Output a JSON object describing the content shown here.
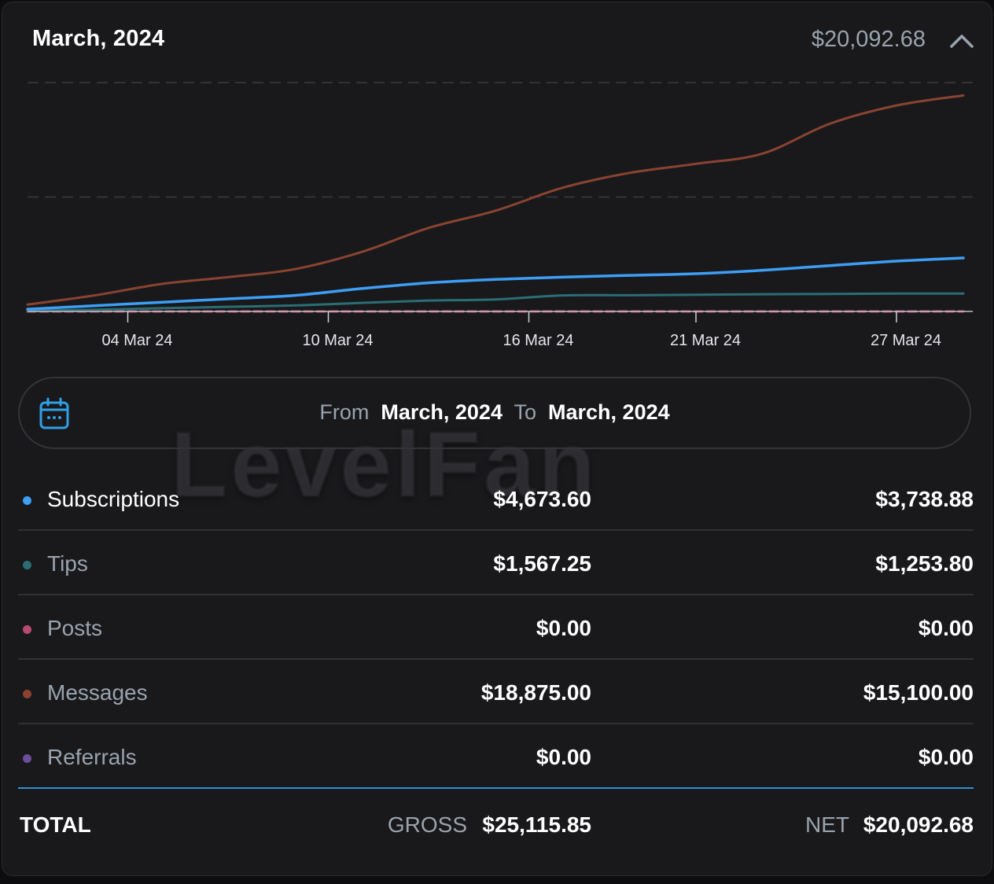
{
  "header": {
    "title": "March, 2024",
    "total": "$20,092.68"
  },
  "watermark": "LevelFan",
  "range": {
    "from_label": "From",
    "from_value": "March, 2024",
    "to_label": "To",
    "to_value": "March, 2024"
  },
  "rows": [
    {
      "label": "Subscriptions",
      "gross": "$4,673.60",
      "net": "$3,738.88",
      "color": "#3d9ef5"
    },
    {
      "label": "Tips",
      "gross": "$1,567.25",
      "net": "$1,253.80",
      "color": "#2a6e74"
    },
    {
      "label": "Posts",
      "gross": "$0.00",
      "net": "$0.00",
      "color": "#b84a6f"
    },
    {
      "label": "Messages",
      "gross": "$18,875.00",
      "net": "$15,100.00",
      "color": "#8a4330"
    },
    {
      "label": "Referrals",
      "gross": "$0.00",
      "net": "$0.00",
      "color": "#6a4f9a"
    }
  ],
  "total": {
    "label": "TOTAL",
    "gross_label": "GROSS",
    "gross_value": "$25,115.85",
    "net_label": "NET",
    "net_value": "$20,092.68"
  },
  "chart_data": {
    "type": "line",
    "title": "",
    "xlabel": "",
    "ylabel": "",
    "x_tick_labels": [
      "04 Mar 24",
      "10 Mar 24",
      "16 Mar 24",
      "21 Mar 24",
      "27 Mar 24"
    ],
    "x_tick_days": [
      4,
      10,
      16,
      21,
      27
    ],
    "x_range": [
      1,
      29
    ],
    "ylim": [
      0,
      20000
    ],
    "y_gridlines": [
      10000,
      20000
    ],
    "series": [
      {
        "name": "Messages",
        "color": "#8a4330",
        "x": [
          1,
          3,
          5,
          7,
          9,
          11,
          13,
          15,
          17,
          19,
          21,
          23,
          25,
          27,
          29
        ],
        "values": [
          600,
          1400,
          2400,
          3000,
          3700,
          5200,
          7300,
          8800,
          10800,
          12100,
          12900,
          13800,
          16400,
          18000,
          18875
        ]
      },
      {
        "name": "Subscriptions",
        "color": "#3d9ef5",
        "x": [
          1,
          3,
          5,
          7,
          9,
          11,
          13,
          15,
          17,
          19,
          21,
          23,
          25,
          27,
          29
        ],
        "values": [
          200,
          500,
          800,
          1100,
          1400,
          2000,
          2500,
          2800,
          3000,
          3150,
          3300,
          3600,
          4000,
          4400,
          4673.6
        ]
      },
      {
        "name": "Tips",
        "color": "#2a6e74",
        "x": [
          1,
          3,
          5,
          7,
          9,
          11,
          13,
          15,
          17,
          19,
          21,
          23,
          25,
          27,
          29
        ],
        "values": [
          50,
          150,
          280,
          400,
          520,
          750,
          950,
          1050,
          1400,
          1420,
          1460,
          1500,
          1530,
          1560,
          1567.25
        ]
      },
      {
        "name": "Posts",
        "color": "#b84a6f",
        "x": [
          1,
          29
        ],
        "values": [
          0,
          0
        ]
      },
      {
        "name": "Referrals",
        "color": "#6a4f9a",
        "x": [
          1,
          29
        ],
        "values": [
          0,
          0
        ]
      }
    ]
  }
}
